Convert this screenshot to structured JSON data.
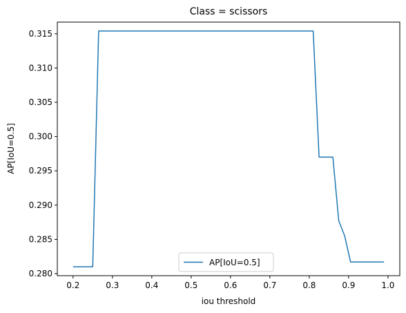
{
  "chart_data": {
    "type": "line",
    "title": "Class = scissors",
    "xlabel": "iou threshold",
    "ylabel": "AP[IoU=0.5]",
    "xlim": [
      0.16,
      1.03
    ],
    "ylim": [
      0.2797,
      0.3167
    ],
    "xticks": [
      "0.2",
      "0.3",
      "0.4",
      "0.5",
      "0.6",
      "0.7",
      "0.8",
      "0.9",
      "1.0"
    ],
    "yticks": [
      "0.280",
      "0.285",
      "0.290",
      "0.295",
      "0.300",
      "0.305",
      "0.310",
      "0.315"
    ],
    "grid": false,
    "legend": "lower-center",
    "series": [
      {
        "name": "AP[IoU=0.5]",
        "color": "#1f77b4",
        "x": [
          0.2,
          0.25,
          0.265,
          0.81,
          0.825,
          0.86,
          0.875,
          0.89,
          0.905,
          0.99
        ],
        "y": [
          0.281,
          0.281,
          0.3154,
          0.3154,
          0.297,
          0.297,
          0.2877,
          0.2855,
          0.2817,
          0.2817
        ]
      }
    ]
  }
}
